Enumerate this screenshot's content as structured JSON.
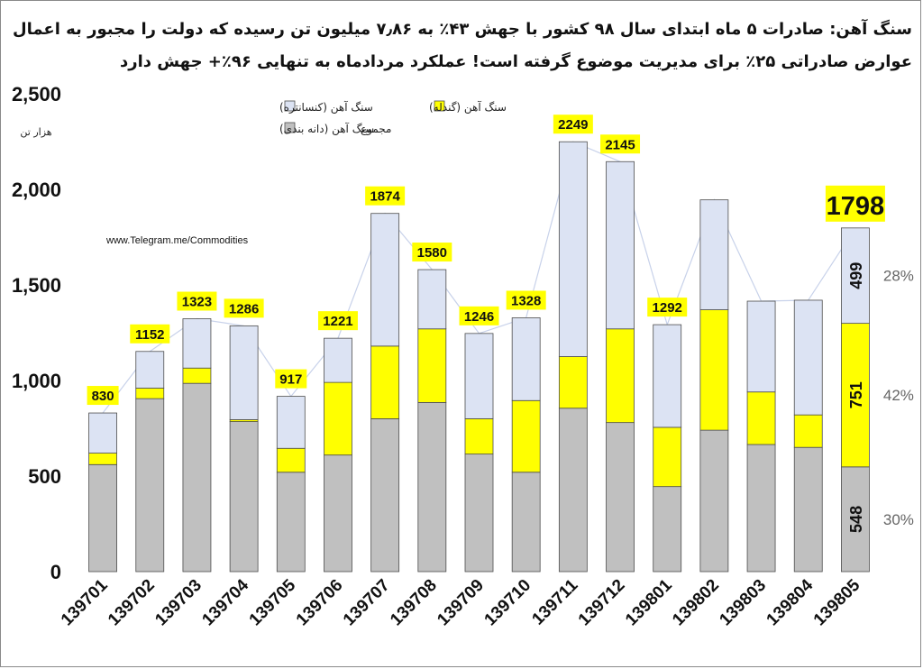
{
  "title": {
    "line1": "سنگ آهن: صادرات ۵ ماه ابتدای سال ۹۸ کشور با جهش ۴۳٪ به ۷٫۸۶ میلیون تن رسیده که دولت را مجبور به اعمال",
    "line2": "عوارض صادراتی ۲۵٪ برای مدیریت موضوع گرفته است! عملکرد مردادماه به تنهایی ۹۶٪+ جهش دارد"
  },
  "link_text": "www.Telegram.me/Commodities",
  "colors": {
    "concentrate": "#dce3f3",
    "pellet": "#ffff00",
    "granule": "#c0c0c0",
    "bar_border": "#4d4d4d",
    "total_label_bg": "#ffff00",
    "total_line": "#c8d2ea"
  },
  "chart_data": {
    "type": "bar",
    "stacked": true,
    "ylabel": "هزار تن",
    "ylim": [
      0,
      2500
    ],
    "yticks": [
      "0",
      "500",
      "1,000",
      "1,500",
      "2,000",
      "2,500"
    ],
    "ytick_values": [
      0,
      500,
      1000,
      1500,
      2000,
      2500
    ],
    "categories": [
      "139701",
      "139702",
      "139703",
      "139704",
      "139705",
      "139706",
      "139707",
      "139708",
      "139709",
      "139710",
      "139711",
      "139712",
      "139801",
      "139802",
      "139803",
      "139804",
      "139805"
    ],
    "series": [
      {
        "name": "سنگ آهن (دانه بندی)",
        "color_key": "granule",
        "values": [
          560,
          905,
          985,
          785,
          520,
          610,
          800,
          885,
          615,
          520,
          855,
          780,
          445,
          740,
          665,
          650,
          548
        ]
      },
      {
        "name": "سنگ آهن (گندله)",
        "color_key": "pellet",
        "values": [
          60,
          55,
          80,
          10,
          125,
          380,
          380,
          385,
          185,
          375,
          270,
          490,
          310,
          630,
          275,
          170,
          751
        ]
      },
      {
        "name": "سنگ آهن (کنسانتره)",
        "color_key": "concentrate",
        "values": [
          210,
          192,
          258,
          491,
          272,
          231,
          694,
          310,
          446,
          433,
          1124,
          875,
          537,
          575,
          475,
          600,
          499
        ]
      }
    ],
    "totals_series_name": "مجموع",
    "total_labels": [
      "830",
      "1152",
      "1323",
      "1286",
      "917",
      "1221",
      "1874",
      "1580",
      "1246",
      "1328",
      "2249",
      "2145",
      "1292",
      "",
      "",
      "",
      "1798"
    ],
    "last_bar_segment_labels": [
      "548",
      "751",
      "499"
    ],
    "last_bar_shares": [
      "30%",
      "42%",
      "28%"
    ],
    "legend_position": "top-left"
  }
}
